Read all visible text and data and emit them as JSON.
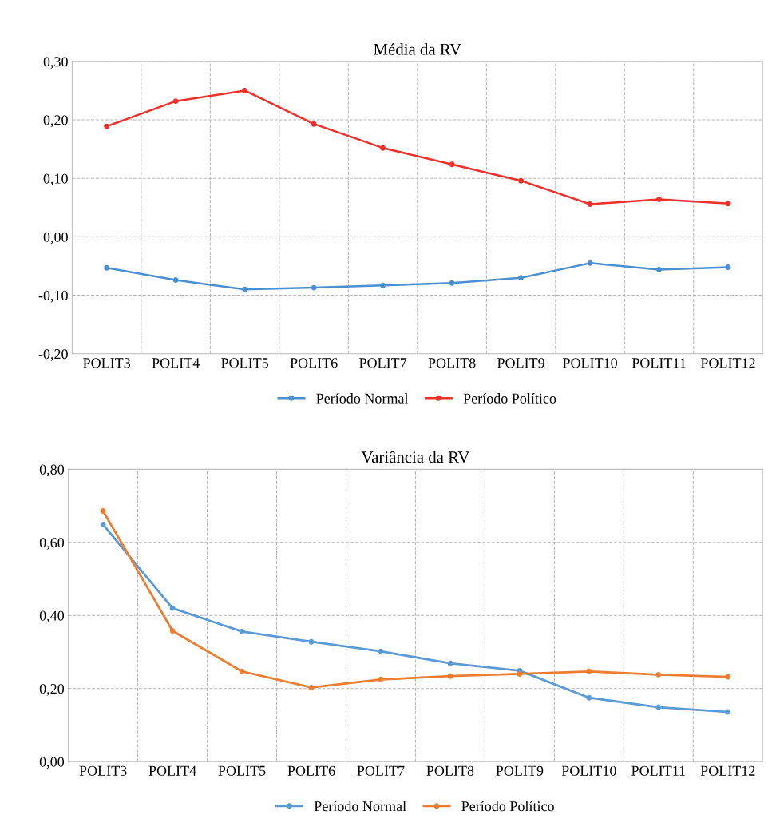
{
  "chart_data": [
    {
      "type": "line",
      "title": "Média da RV",
      "categories": [
        "POLIT3",
        "POLIT4",
        "POLIT5",
        "POLIT6",
        "POLIT7",
        "POLIT8",
        "POLIT9",
        "POLIT10",
        "POLIT11",
        "POLIT12"
      ],
      "series": [
        {
          "name": "Período Normal",
          "color": "#4a90d0",
          "values": [
            -0.053,
            -0.074,
            -0.09,
            -0.087,
            -0.083,
            -0.079,
            -0.07,
            -0.045,
            -0.056,
            -0.052
          ]
        },
        {
          "name": "Período Político",
          "color": "#f0302a",
          "values": [
            0.189,
            0.232,
            0.25,
            0.193,
            0.152,
            0.124,
            0.096,
            0.056,
            0.064,
            0.057
          ]
        }
      ],
      "ylim": [
        -0.2,
        0.3
      ],
      "yticks": [
        {
          "value": -0.2,
          "label": "-0,20"
        },
        {
          "value": -0.1,
          "label": "-0,10"
        },
        {
          "value": 0,
          "label": "0,00"
        },
        {
          "value": 0.1,
          "label": "0,10"
        },
        {
          "value": 0.2,
          "label": "0,20"
        },
        {
          "value": 0.3,
          "label": "0,30"
        }
      ],
      "grid": true,
      "legend": "bottom",
      "marker": "circle",
      "line_style": "solid"
    },
    {
      "type": "line",
      "title": "Variância da RV",
      "categories": [
        "POLIT3",
        "POLIT4",
        "POLIT5",
        "POLIT6",
        "POLIT7",
        "POLIT8",
        "POLIT9",
        "POLIT10",
        "POLIT11",
        "POLIT12"
      ],
      "series": [
        {
          "name": "Período Normal",
          "color": "#5b9bd5",
          "values": [
            0.649,
            0.42,
            0.356,
            0.328,
            0.302,
            0.269,
            0.249,
            0.175,
            0.149,
            0.136
          ]
        },
        {
          "name": "Período Político",
          "color": "#ed7d31",
          "values": [
            0.686,
            0.358,
            0.247,
            0.203,
            0.225,
            0.234,
            0.24,
            0.247,
            0.238,
            0.232
          ]
        }
      ],
      "ylim": [
        0,
        0.8
      ],
      "yticks": [
        {
          "value": 0,
          "label": "0,00"
        },
        {
          "value": 0.2,
          "label": "0,20"
        },
        {
          "value": 0.4,
          "label": "0,40"
        },
        {
          "value": 0.6,
          "label": "0,60"
        },
        {
          "value": 0.8,
          "label": "0,80"
        }
      ],
      "grid": true,
      "legend": "bottom",
      "marker": "circle",
      "line_style": "solid"
    }
  ]
}
